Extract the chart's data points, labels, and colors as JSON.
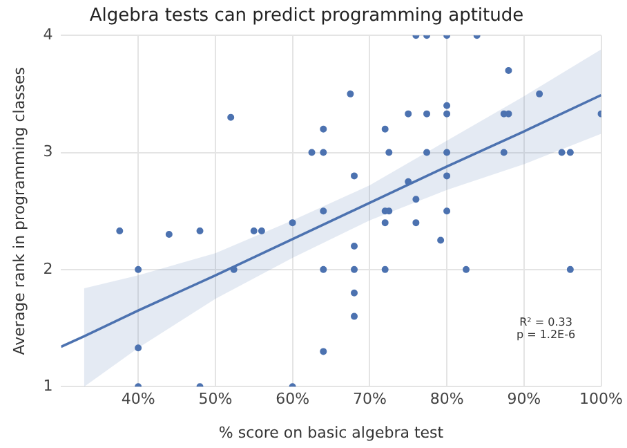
{
  "chart_data": {
    "type": "scatter",
    "title": "Algebra tests can predict programming aptitude",
    "xlabel": "% score on basic algebra test",
    "ylabel": "Average rank in programming classes",
    "xlim": [
      30,
      100
    ],
    "xticks": [
      {
        "value": 40,
        "label": "40%"
      },
      {
        "value": 50,
        "label": "50%"
      },
      {
        "value": 60,
        "label": "60%"
      },
      {
        "value": 70,
        "label": "70%"
      },
      {
        "value": 80,
        "label": "80%"
      },
      {
        "value": 90,
        "label": "90%"
      },
      {
        "value": 100,
        "label": "100%"
      }
    ],
    "ylim": [
      1,
      4
    ],
    "yticks": [
      1,
      2,
      3,
      4
    ],
    "grid": true,
    "legend": false,
    "marker": "circle",
    "annotations": [
      "R² = 0.33",
      "p = 1.2E-6"
    ],
    "series": [
      {
        "type": "scatter",
        "color": "#4c72b0",
        "x": [
          52,
          62.5,
          64,
          64,
          64,
          60,
          76,
          77.4,
          80,
          83.9,
          88,
          92,
          67.5,
          72,
          75,
          77.4,
          80,
          80,
          87.4,
          88,
          100,
          72.5,
          77.4,
          80,
          87.4,
          94.9,
          96,
          68,
          75,
          80,
          76,
          72,
          72.5,
          80,
          72,
          76,
          37.6,
          44,
          48,
          55,
          56,
          40,
          52.4,
          64,
          40,
          64,
          40,
          48,
          60,
          79.2,
          68,
          68,
          72,
          82.5,
          96,
          68,
          68
        ],
        "values": [
          3.3,
          3.0,
          3.0,
          3.2,
          2.5,
          2.4,
          4,
          4,
          4,
          4,
          3.7,
          3.5,
          3.5,
          3.2,
          3.33,
          3.33,
          3.33,
          3.4,
          3.33,
          3.33,
          3.33,
          3.0,
          3.0,
          3.0,
          3.0,
          3.0,
          3.0,
          2.8,
          2.75,
          2.8,
          2.6,
          2.5,
          2.5,
          2.5,
          2.4,
          2.4,
          2.33,
          2.3,
          2.33,
          2.33,
          2.33,
          2.0,
          2.0,
          2.0,
          1.33,
          1.3,
          1,
          1,
          1,
          2.25,
          2.2,
          2.0,
          2.0,
          2.0,
          2.0,
          1.8,
          1.6
        ]
      },
      {
        "type": "line",
        "color": "#4c72b0",
        "x": [
          30,
          33,
          40,
          50,
          60,
          70,
          80,
          90,
          100
        ],
        "values": [
          1.34,
          1.43,
          1.65,
          1.95,
          2.26,
          2.57,
          2.88,
          3.18,
          3.49
        ],
        "lower": [
          null,
          1.0,
          1.33,
          1.75,
          2.1,
          2.42,
          2.68,
          2.9,
          3.16
        ],
        "upper": [
          null,
          1.84,
          1.95,
          2.14,
          2.42,
          2.72,
          3.1,
          3.48,
          3.88
        ],
        "marker": "none"
      }
    ]
  }
}
